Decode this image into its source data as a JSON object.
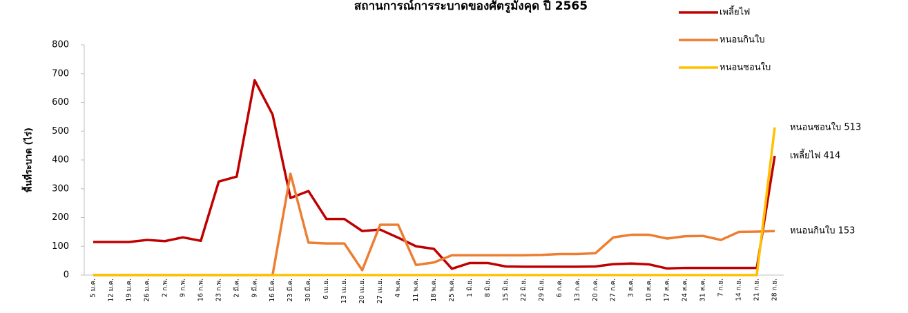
{
  "chart_data": {
    "type": "line",
    "title": "สถานการณ์การระบาดของศัตรูมังคุด ปี 2565",
    "y_label": "พื้นที่ระบาด (ไร่)",
    "categories": [
      "5 ม.ค.",
      "12 ม.ค.",
      "19 ม.ค.",
      "26 ม.ค.",
      "2 ก.พ.",
      "9 ก.พ.",
      "16 ก.พ.",
      "23 ก.พ.",
      "2 มี.ค.",
      "9 มี.ค.",
      "16 มี.ค.",
      "23 มี.ค.",
      "30 มี.ค.",
      "6 เม.ย.",
      "13 เม.ย.",
      "20 เม.ย.",
      "27 เม.ย.",
      "4 พ.ค.",
      "11 พ.ค.",
      "18 พ.ค.",
      "25 พ.ค.",
      "1 มิ.ย.",
      "8 มิ.ย.",
      "15 มิ.ย.",
      "22 มิ.ย.",
      "29 มิ.ย.",
      "6 ก.ค.",
      "13 ก.ค.",
      "20 ก.ค.",
      "27 ก.ค.",
      "3 ส.ค.",
      "10 ส.ค.",
      "17 ส.ค.",
      "24 ส.ค.",
      "31 ส.ค.",
      "7 ก.ย.",
      "14 ก.ย.",
      "21 ก.ย.",
      "28 ก.ย."
    ],
    "series": [
      {
        "name": "เพลี้ยไฟ",
        "color": "#c00000",
        "values": [
          115,
          115,
          115,
          122,
          118,
          131,
          119,
          325,
          342,
          677,
          558,
          268,
          292,
          195,
          195,
          153,
          158,
          130,
          100,
          91,
          22,
          42,
          42,
          30,
          29,
          29,
          29,
          29,
          30,
          38,
          40,
          37,
          23,
          25,
          25,
          25,
          25,
          25,
          414
        ],
        "value_labels": [
          null,
          null,
          null,
          null,
          null,
          null,
          null,
          null,
          null,
          null,
          null,
          null,
          null,
          null,
          null,
          null,
          null,
          null,
          null,
          null,
          null,
          null,
          null,
          null,
          null,
          null,
          null,
          null,
          null,
          null,
          null,
          null,
          null,
          null,
          null,
          null,
          null,
          null,
          "เพลี้ยไฟ 414"
        ]
      },
      {
        "name": "หนอนกินใบ",
        "color": "#ed7d31",
        "values": [
          0,
          0,
          0,
          0,
          0,
          0,
          0,
          0,
          0,
          0,
          0,
          352,
          113,
          110,
          110,
          17,
          175,
          175,
          35,
          44,
          69,
          69,
          69,
          69,
          69,
          70,
          73,
          73,
          76,
          131,
          140,
          140,
          127,
          135,
          136,
          122,
          150,
          151,
          153
        ],
        "value_labels": [
          null,
          null,
          null,
          null,
          null,
          null,
          null,
          null,
          null,
          null,
          null,
          null,
          null,
          null,
          null,
          null,
          null,
          null,
          null,
          null,
          null,
          null,
          null,
          null,
          null,
          null,
          null,
          null,
          null,
          null,
          null,
          null,
          null,
          null,
          null,
          null,
          null,
          null,
          "หนอนกินใบ 153"
        ]
      },
      {
        "name": "หนอนชอนใบ",
        "color": "#ffc000",
        "values": [
          0,
          0,
          0,
          0,
          0,
          0,
          0,
          0,
          0,
          0,
          0,
          0,
          0,
          0,
          0,
          0,
          0,
          0,
          0,
          0,
          0,
          0,
          0,
          0,
          0,
          0,
          0,
          0,
          0,
          0,
          0,
          0,
          0,
          0,
          0,
          0,
          0,
          0,
          513
        ],
        "value_labels": [
          null,
          null,
          null,
          null,
          null,
          null,
          null,
          null,
          null,
          null,
          null,
          null,
          null,
          null,
          null,
          null,
          null,
          null,
          null,
          null,
          null,
          null,
          null,
          null,
          null,
          null,
          null,
          null,
          null,
          null,
          null,
          null,
          null,
          null,
          null,
          null,
          null,
          null,
          "หนอนชอนใบ 513"
        ]
      }
    ],
    "ylim": [
      0,
      800
    ],
    "yticks": [
      0,
      100,
      200,
      300,
      400,
      500,
      600,
      700,
      800
    ],
    "legend": "top-right"
  }
}
